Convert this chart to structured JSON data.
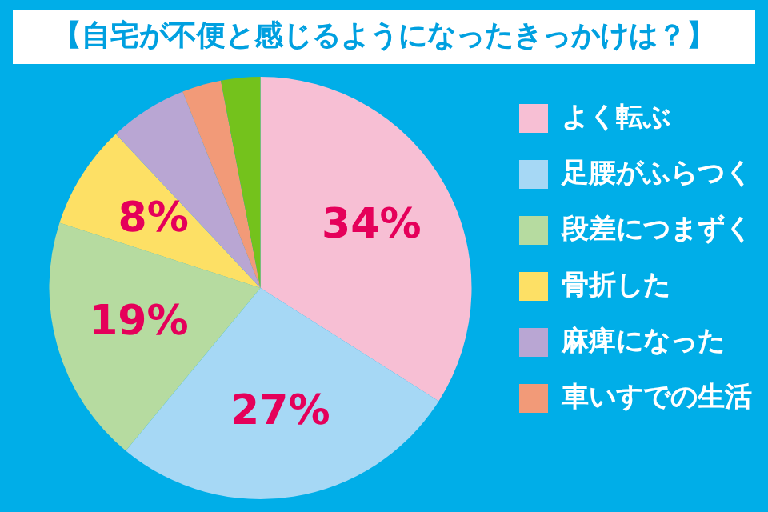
{
  "chart_data": {
    "type": "pie",
    "title": "【自宅が不便と感じるようになったきっかけは？】",
    "categories": [
      "よく転ぶ",
      "足腰がふらつく",
      "段差につまずく",
      "骨折した",
      "麻痺になった",
      "車いすでの生活",
      null
    ],
    "values": [
      34,
      27,
      19,
      8,
      6,
      3,
      3
    ],
    "colors": [
      "#f7bfd4",
      "#a6d8f5",
      "#b6dba0",
      "#fde065",
      "#b9a6d3",
      "#f29a78",
      "#74c21c"
    ],
    "value_labels": [
      "34%",
      "27%",
      "19%",
      "8%",
      null,
      null,
      null
    ],
    "legend": "right"
  }
}
